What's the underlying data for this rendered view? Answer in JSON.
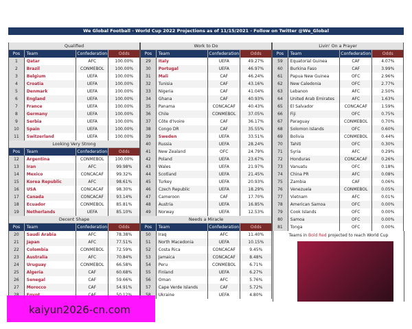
{
  "title": "We Global Football - World Cup 2022 Projections as of 11/15/2021 - Follow on Twitter @We_Global",
  "headers": {
    "pos": "Pos",
    "team": "Team",
    "conf": "Confederation",
    "odds": "Odds"
  },
  "colors": {
    "navy": "#1f3864",
    "odds_header": "#7b2a2a",
    "projected_red": "#b5283f"
  },
  "columns": [
    {
      "sections": [
        {
          "name": "Qualified",
          "rows": [
            [
              "1",
              "Qatar",
              "AFC",
              "100.00%",
              true
            ],
            [
              "2",
              "Brazil",
              "CONMEBOL",
              "100.00%",
              true
            ],
            [
              "3",
              "Belgium",
              "UEFA",
              "100.00%",
              true
            ],
            [
              "4",
              "Croatia",
              "UEFA",
              "100.00%",
              true
            ],
            [
              "5",
              "Denmark",
              "UEFA",
              "100.00%",
              true
            ],
            [
              "6",
              "England",
              "UEFA",
              "100.00%",
              true
            ],
            [
              "7",
              "France",
              "UEFA",
              "100.00%",
              true
            ],
            [
              "8",
              "Germany",
              "UEFA",
              "100.00%",
              true
            ],
            [
              "9",
              "Serbia",
              "UEFA",
              "100.00%",
              true
            ],
            [
              "10",
              "Spain",
              "UEFA",
              "100.00%",
              true
            ],
            [
              "11",
              "Switzerland",
              "UEFA",
              "100.00%",
              true
            ]
          ]
        },
        {
          "name": "Looking Very Strong",
          "rows": [
            [
              "12",
              "Argentina",
              "CONMEBOL",
              "100.00%",
              true
            ],
            [
              "13",
              "Iran",
              "AFC",
              "99.98%",
              true
            ],
            [
              "14",
              "Mexico",
              "CONCACAF",
              "99.32%",
              true
            ],
            [
              "15",
              "Korea Republic",
              "AFC",
              "98.61%",
              true
            ],
            [
              "16",
              "USA",
              "CONCACAF",
              "98.30%",
              true
            ],
            [
              "17",
              "Canada",
              "CONCACAF",
              "93.14%",
              true
            ],
            [
              "18",
              "Ecuador",
              "CONMEBOL",
              "85.81%",
              true
            ],
            [
              "19",
              "Netherlands",
              "UEFA",
              "85.10%",
              true
            ]
          ]
        },
        {
          "name": "Decent Shape",
          "rows": [
            [
              "20",
              "Saudi Arabia",
              "AFC",
              "78.38%",
              true
            ],
            [
              "21",
              "Japan",
              "AFC",
              "77.51%",
              true
            ],
            [
              "22",
              "Colombia",
              "CONMEBOL",
              "72.59%",
              true
            ],
            [
              "23",
              "Australia",
              "AFC",
              "70.84%",
              true
            ],
            [
              "24",
              "Uruguay",
              "CONMEBOL",
              "66.58%",
              true
            ],
            [
              "25",
              "Algeria",
              "CAF",
              "60.68%",
              true
            ],
            [
              "26",
              "Senegal",
              "CAF",
              "59.66%",
              true
            ],
            [
              "27",
              "Morocco",
              "CAF",
              "54.91%",
              true
            ],
            [
              "28",
              "Egypt",
              "CAF",
              "50.12%",
              true
            ]
          ]
        }
      ]
    },
    {
      "sections": [
        {
          "name": "Work to Do",
          "rows": [
            [
              "29",
              "Italy",
              "UEFA",
              "49.27%",
              true
            ],
            [
              "30",
              "Portugal",
              "UEFA",
              "46.97%",
              true
            ],
            [
              "31",
              "Mali",
              "CAF",
              "46.24%",
              true
            ],
            [
              "32",
              "Tunisia",
              "CAF",
              "43.16%",
              false
            ],
            [
              "33",
              "Nigeria",
              "CAF",
              "41.04%",
              false
            ],
            [
              "34",
              "Ghana",
              "CAF",
              "40.93%",
              false
            ],
            [
              "35",
              "Panama",
              "CONCACAF",
              "40.43%",
              false
            ],
            [
              "36",
              "Chile",
              "CONMEBOL",
              "37.05%",
              false
            ],
            [
              "37",
              "Côte d'Ivoire",
              "CAF",
              "36.17%",
              false
            ],
            [
              "38",
              "Congo DR",
              "CAF",
              "35.55%",
              false
            ],
            [
              "39",
              "Sweden",
              "UEFA",
              "33.51%",
              true
            ],
            [
              "40",
              "Russia",
              "UEFA",
              "28.24%",
              false
            ],
            [
              "41",
              "New Zealand",
              "OFC",
              "24.79%",
              false
            ],
            [
              "42",
              "Poland",
              "UEFA",
              "23.67%",
              false
            ],
            [
              "43",
              "Wales",
              "UEFA",
              "21.97%",
              false
            ],
            [
              "44",
              "Scotland",
              "UEFA",
              "21.45%",
              false
            ],
            [
              "45",
              "Turkey",
              "UEFA",
              "20.93%",
              false
            ],
            [
              "46",
              "Czech Republic",
              "UEFA",
              "18.29%",
              false
            ],
            [
              "47",
              "Cameroon",
              "CAF",
              "17.70%",
              false
            ],
            [
              "48",
              "Austria",
              "UEFA",
              "16.85%",
              false
            ],
            [
              "49",
              "Norway",
              "UEFA",
              "12.53%",
              false
            ]
          ]
        },
        {
          "name": "Needs a Miracle",
          "rows": [
            [
              "50",
              "Iraq",
              "AFC",
              "11.40%",
              false
            ],
            [
              "51",
              "North Macedonia",
              "UEFA",
              "10.15%",
              false
            ],
            [
              "52",
              "Costa Rica",
              "CONCACAF",
              "9.45%",
              false
            ],
            [
              "53",
              "Jamaica",
              "CONCACAF",
              "8.48%",
              false
            ],
            [
              "54",
              "Peru",
              "CONMEBOL",
              "6.71%",
              false
            ],
            [
              "55",
              "Finland",
              "UEFA",
              "6.27%",
              false
            ],
            [
              "56",
              "Oman",
              "AFC",
              "5.76%",
              false
            ],
            [
              "57",
              "Cape Verde Islands",
              "CAF",
              "5.72%",
              false
            ],
            [
              "58",
              "Ukraine",
              "UEFA",
              "4.80%",
              false
            ]
          ]
        }
      ]
    },
    {
      "sections": [
        {
          "name": "Livin' On a Prayer",
          "rows": [
            [
              "59",
              "Equatorial Guinea",
              "CAF",
              "4.07%",
              false
            ],
            [
              "60",
              "Burkina Faso",
              "CAF",
              "3.99%",
              false
            ],
            [
              "61",
              "Papua New Guinea",
              "OFC",
              "2.96%",
              false
            ],
            [
              "62",
              "New Caledonia",
              "OFC",
              "2.77%",
              false
            ],
            [
              "63",
              "Lebanon",
              "AFC",
              "2.50%",
              false
            ],
            [
              "64",
              "United Arab Emirates",
              "AFC",
              "1.63%",
              false
            ],
            [
              "65",
              "El Salvador",
              "CONCACAF",
              "1.59%",
              false
            ],
            [
              "66",
              "Fiji",
              "OFC",
              "0.75%",
              false
            ],
            [
              "67",
              "Paraguay",
              "CONMEBOL",
              "0.70%",
              false
            ],
            [
              "68",
              "Solomon Islands",
              "OFC",
              "0.60%",
              false
            ],
            [
              "69",
              "Bolivia",
              "CONMEBOL",
              "0.44%",
              false
            ],
            [
              "70",
              "Tahiti",
              "OFC",
              "0.30%",
              false
            ],
            [
              "71",
              "Syria",
              "AFC",
              "0.29%",
              false
            ],
            [
              "72",
              "Honduras",
              "CONCACAF",
              "0.26%",
              false
            ],
            [
              "73",
              "Vanuatu",
              "OFC",
              "0.18%",
              false
            ],
            [
              "74",
              "China PR",
              "AFC",
              "0.08%",
              false
            ],
            [
              "75",
              "Zambia",
              "CAF",
              "0.06%",
              false
            ],
            [
              "76",
              "Venezuela",
              "CONMEBOL",
              "0.05%",
              false
            ],
            [
              "77",
              "Vietnam",
              "AFC",
              "0.01%",
              false
            ],
            [
              "78",
              "American Samoa",
              "OFC",
              "0.00%",
              false
            ],
            [
              "79",
              "Cook Islands",
              "OFC",
              "0.00%",
              false
            ],
            [
              "80",
              "Samoa",
              "OFC",
              "0.00%",
              false
            ],
            [
              "81",
              "Tonga",
              "OFC",
              "0.00%",
              false
            ]
          ]
        }
      ]
    }
  ],
  "note": {
    "before": "Teams in ",
    "highlight": "Bold Red",
    "after": " projected to reach World Cup"
  },
  "watermark": "kaiyun2026-cn.com"
}
